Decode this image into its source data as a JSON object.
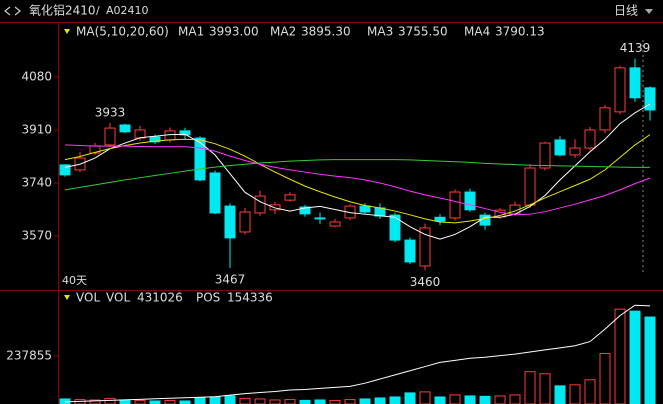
{
  "header": {
    "symbol": "氧化铝2410",
    "separator": "/",
    "code": "A02410",
    "period": "日线"
  },
  "chart_data": [
    {
      "type": "candlestick",
      "ma_label": "MA(5,10,20,60)",
      "period_label": "40天",
      "ylim": [
        3397,
        4256
      ],
      "yticks": [
        4080,
        3910,
        3740,
        3570
      ],
      "up_color": "#ff3c3c",
      "down_color": "#00e8f0",
      "flat_color": "#ffffff",
      "open": [
        3798,
        3782,
        3836,
        3862,
        3926,
        3884,
        3888,
        3878,
        3907,
        3884,
        3772,
        3666,
        3583,
        3644,
        3654,
        3685,
        3663,
        3628,
        3602,
        3628,
        3666,
        3660,
        3637,
        3557,
        3474,
        3630,
        3628,
        3711,
        3637,
        3631,
        3641,
        3669,
        3788,
        3878,
        3830,
        3852,
        3910,
        3968,
        4109,
        4045
      ],
      "high": [
        3800,
        3839,
        3868,
        3933,
        3930,
        3923,
        3895,
        3918,
        3917,
        3890,
        3780,
        3675,
        3660,
        3715,
        3680,
        3710,
        3670,
        3645,
        3625,
        3672,
        3675,
        3675,
        3645,
        3565,
        3610,
        3640,
        3720,
        3722,
        3645,
        3660,
        3680,
        3800,
        3872,
        3890,
        3880,
        3920,
        3990,
        4115,
        4139,
        4050
      ],
      "low": [
        3760,
        3775,
        3830,
        3855,
        3900,
        3875,
        3865,
        3870,
        3880,
        3745,
        3640,
        3467,
        3575,
        3635,
        3640,
        3680,
        3632,
        3608,
        3598,
        3620,
        3640,
        3625,
        3550,
        3480,
        3460,
        3605,
        3620,
        3648,
        3590,
        3625,
        3635,
        3660,
        3780,
        3825,
        3820,
        3845,
        3900,
        3960,
        4000,
        3940
      ],
      "close": [
        3766,
        3820,
        3859,
        3916,
        3904,
        3910,
        3872,
        3907,
        3894,
        3750,
        3644,
        3564,
        3647,
        3698,
        3670,
        3702,
        3641,
        3625,
        3615,
        3666,
        3647,
        3634,
        3557,
        3487,
        3596,
        3618,
        3711,
        3654,
        3605,
        3653,
        3669,
        3788,
        3868,
        3830,
        3852,
        3910,
        3981,
        4109,
        4013,
        3974
      ],
      "series": [
        {
          "name": "MA1",
          "readout": "3993.00",
          "color": "#ffffff",
          "values": [
            3790,
            3800,
            3820,
            3850,
            3868,
            3885,
            3890,
            3895,
            3896,
            3870,
            3830,
            3770,
            3710,
            3680,
            3660,
            3650,
            3660,
            3665,
            3655,
            3645,
            3640,
            3635,
            3630,
            3600,
            3575,
            3560,
            3575,
            3600,
            3630,
            3630,
            3640,
            3665,
            3700,
            3750,
            3795,
            3840,
            3880,
            3930,
            3965,
            3993
          ]
        },
        {
          "name": "MA2",
          "readout": "3895.30",
          "color": "#e6e600",
          "values": [
            3815,
            3825,
            3838,
            3850,
            3860,
            3868,
            3874,
            3878,
            3880,
            3878,
            3866,
            3848,
            3826,
            3800,
            3775,
            3752,
            3730,
            3712,
            3695,
            3680,
            3668,
            3660,
            3650,
            3638,
            3625,
            3615,
            3612,
            3618,
            3626,
            3636,
            3650,
            3670,
            3692,
            3712,
            3732,
            3752,
            3782,
            3822,
            3862,
            3895
          ]
        },
        {
          "name": "MA3",
          "readout": "3755.50",
          "color": "#ff33ff",
          "values": [
            3862,
            3860,
            3858,
            3858,
            3858,
            3857,
            3856,
            3856,
            3856,
            3852,
            3842,
            3826,
            3812,
            3800,
            3790,
            3782,
            3775,
            3768,
            3762,
            3757,
            3750,
            3740,
            3728,
            3714,
            3702,
            3692,
            3681,
            3670,
            3658,
            3646,
            3638,
            3640,
            3648,
            3660,
            3672,
            3686,
            3700,
            3718,
            3738,
            3756
          ]
        },
        {
          "name": "MA4",
          "readout": "3790.13",
          "color": "#33cc33",
          "values": [
            3718,
            3726,
            3734,
            3742,
            3750,
            3757,
            3764,
            3771,
            3778,
            3785,
            3791,
            3796,
            3800,
            3804,
            3807,
            3810,
            3812,
            3814,
            3815,
            3815,
            3815,
            3815,
            3815,
            3814,
            3812,
            3810,
            3808,
            3806,
            3803,
            3801,
            3799,
            3797,
            3796,
            3795,
            3794,
            3793,
            3792,
            3791,
            3790,
            3790
          ]
        }
      ]
    },
    {
      "type": "bar",
      "title": "VOL",
      "ylim": [
        0,
        475710
      ],
      "yticks": [
        237855
      ],
      "y2lim": [
        60000,
        160000
      ],
      "series": [
        {
          "name": "VOL",
          "color": "#00e8f0",
          "values": [
            25000,
            22000,
            20000,
            28000,
            20000,
            18000,
            15000,
            17000,
            15000,
            30000,
            35000,
            40000,
            28000,
            25000,
            20000,
            22000,
            18000,
            20000,
            17000,
            22000,
            25000,
            30000,
            35000,
            55000,
            60000,
            35000,
            45000,
            40000,
            38000,
            40000,
            45000,
            160000,
            150000,
            90000,
            95000,
            120000,
            250000,
            470000,
            460000,
            431026
          ]
        },
        {
          "name": "POS",
          "color": "#ffffff",
          "axis": "y2",
          "values": [
            62000,
            62500,
            63000,
            63500,
            64000,
            64500,
            65000,
            65500,
            66000,
            66500,
            67000,
            68500,
            70000,
            71000,
            72000,
            73500,
            74000,
            75000,
            76000,
            77000,
            80000,
            84000,
            88000,
            92000,
            96000,
            100000,
            102000,
            104000,
            105000,
            106500,
            108000,
            110000,
            112000,
            114000,
            116000,
            120000,
            132000,
            145000,
            155000,
            154336
          ]
        }
      ]
    }
  ]
}
